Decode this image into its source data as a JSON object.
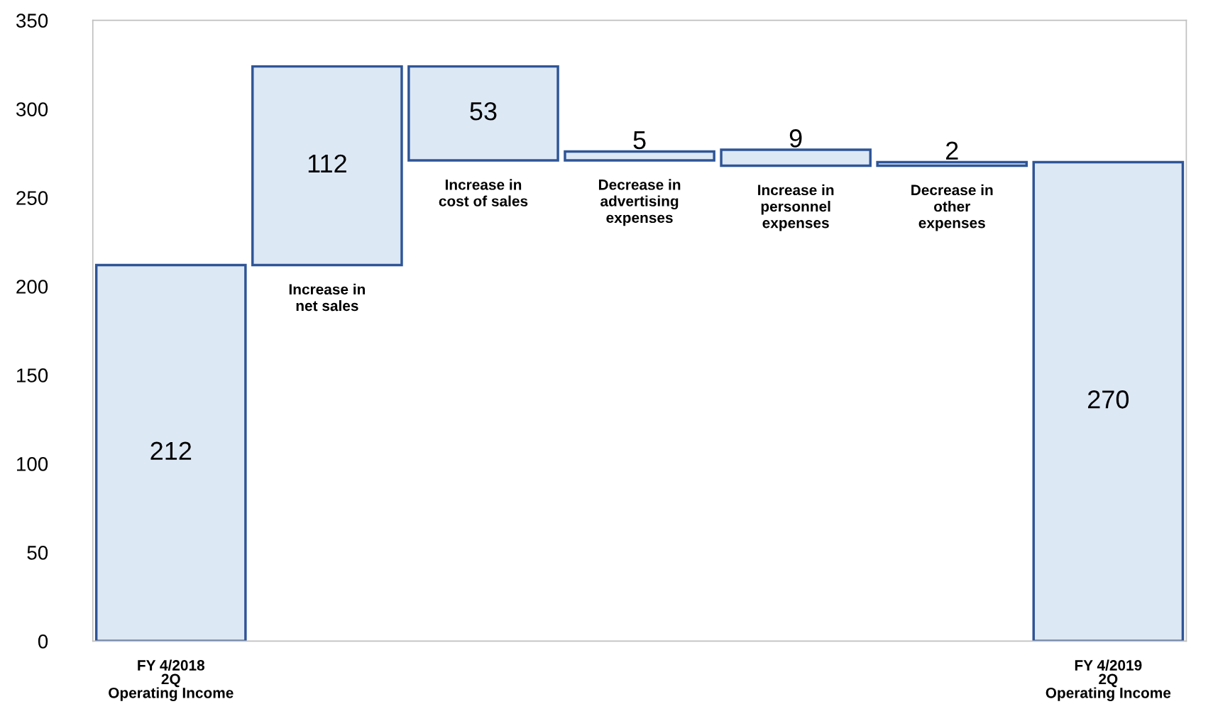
{
  "chart_data": {
    "type": "bar",
    "categories": [
      "FY 4/2018\n2Q\nOperating Income",
      "Increase in\nnet sales",
      "Increase in\ncost of sales",
      "Decrease in\nadvertising\nexpenses",
      "Increase in\npersonnel\nexpenses",
      "Decrease in\nother\nexpenses",
      "FY 4/2019\n2Q\nOperating Income"
    ],
    "values": [
      212,
      112,
      53,
      5,
      9,
      2,
      270
    ],
    "base": [
      0,
      212,
      271,
      271,
      268,
      268,
      0
    ],
    "color": "#dde8f5",
    "ylim": [
      0,
      350
    ],
    "yticks": [
      0,
      50,
      100,
      150,
      200,
      250,
      300,
      350
    ],
    "data_labels": true,
    "grid": false,
    "legend": false
  }
}
